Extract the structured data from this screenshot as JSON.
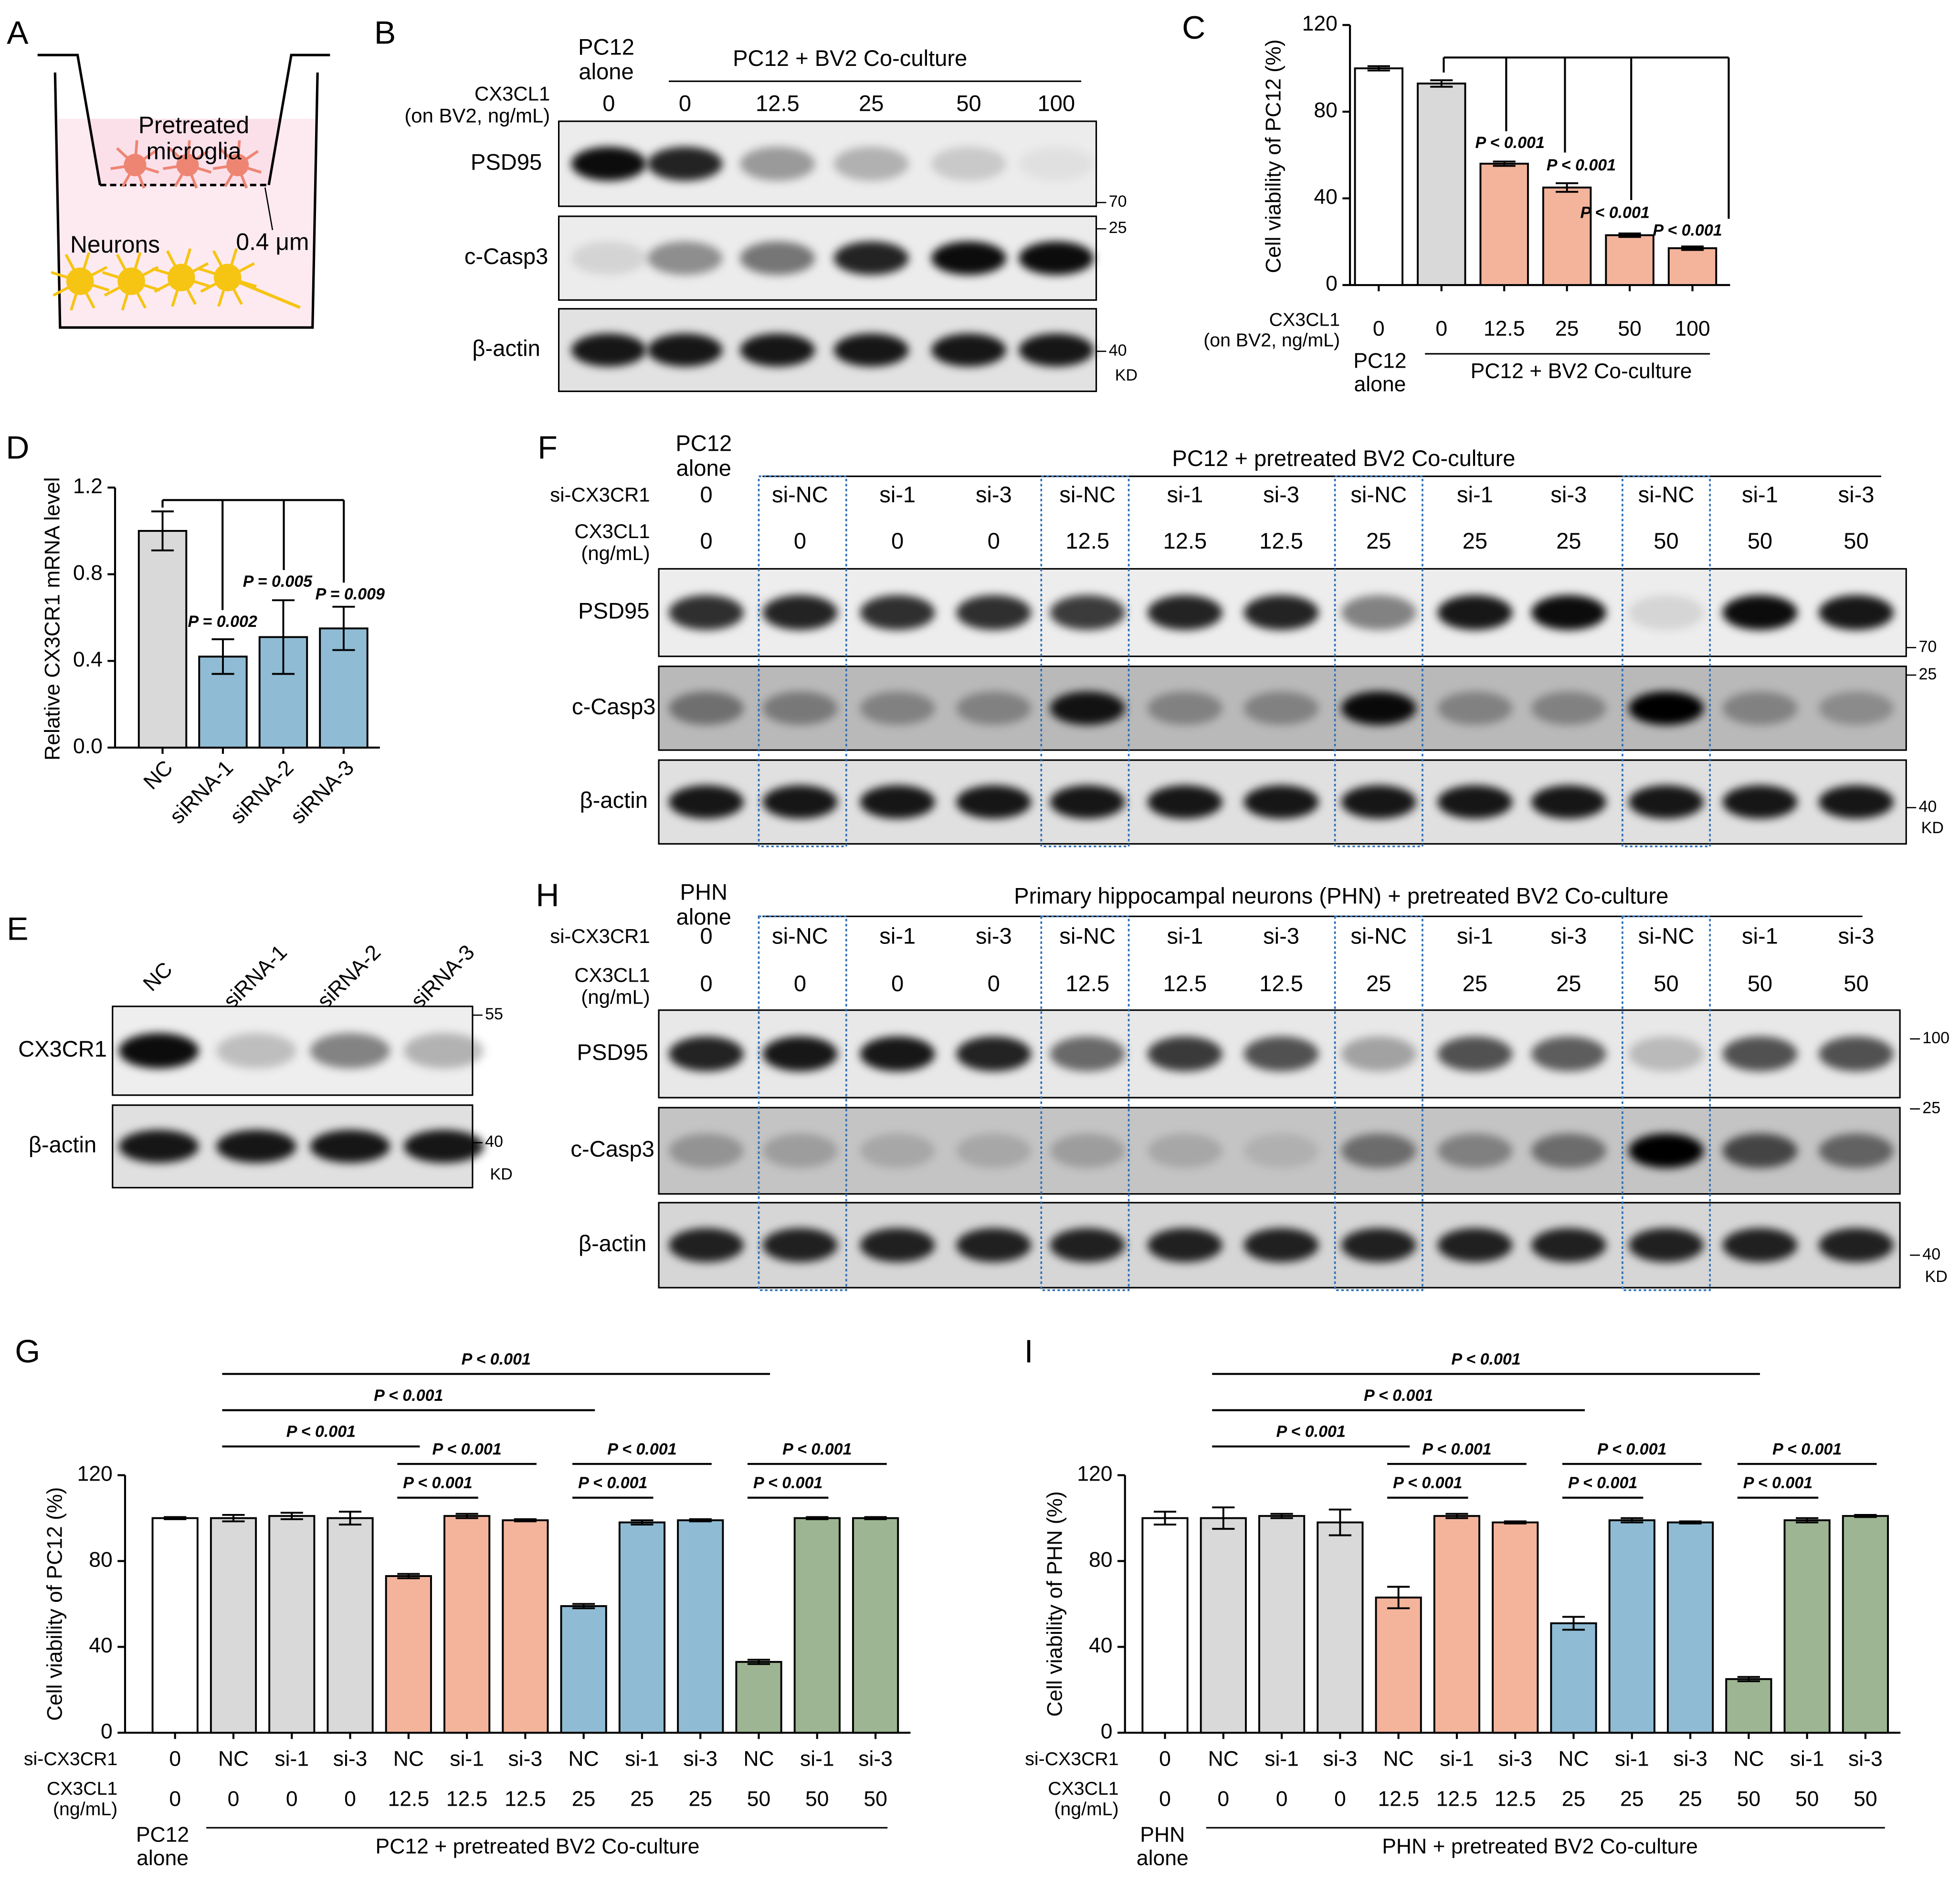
{
  "panels": [
    "A",
    "B",
    "C",
    "D",
    "E",
    "F",
    "G",
    "H",
    "I"
  ],
  "diagram_a": {
    "upper_label": "Pretreated\nmicroglia",
    "lower_label": "Neurons",
    "pore_label": "0.4 μm"
  },
  "blots": [
    {
      "alone": "PC12\nalone",
      "group": "PC12 + BV2 Co-culture",
      "rows": [
        {
          "label": "CX3CL1\n(on BV2, ng/mL)",
          "lanes": [
            "0",
            "0",
            "12.5",
            "25",
            "50",
            "100"
          ]
        }
      ],
      "proteins": [
        "PSD95",
        "c-Casp3",
        "β-actin"
      ],
      "markers": [
        "70",
        "25",
        "40",
        "KD"
      ]
    },
    {
      "rows": [
        {
          "lanes": [
            "NC",
            "siRNA-1",
            "siRNA-2",
            "siRNA-3"
          ]
        }
      ],
      "proteins": [
        "CX3CR1",
        "β-actin"
      ],
      "markers": [
        "55",
        "40",
        "KD"
      ]
    },
    {
      "alone": "PC12\nalone",
      "group": "PC12 + pretreated BV2 Co-culture",
      "rows": [
        {
          "label": "si-CX3CR1",
          "lanes": [
            "0",
            "si-NC",
            "si-1",
            "si-3",
            "si-NC",
            "si-1",
            "si-3",
            "si-NC",
            "si-1",
            "si-3",
            "si-NC",
            "si-1",
            "si-3"
          ]
        },
        {
          "label": "CX3CL1\n(ng/mL)",
          "lanes": [
            "0",
            "0",
            "0",
            "0",
            "12.5",
            "12.5",
            "12.5",
            "25",
            "25",
            "25",
            "50",
            "50",
            "50"
          ]
        }
      ],
      "proteins": [
        "PSD95",
        "c-Casp3",
        "β-actin"
      ],
      "markers": [
        "70",
        "25",
        "40",
        "KD"
      ]
    },
    {
      "alone": "PHN\nalone",
      "group": "Primary hippocampal neurons (PHN) + pretreated BV2 Co-culture",
      "rows": [
        {
          "label": "si-CX3CR1",
          "lanes": [
            "0",
            "si-NC",
            "si-1",
            "si-3",
            "si-NC",
            "si-1",
            "si-3",
            "si-NC",
            "si-1",
            "si-3",
            "si-NC",
            "si-1",
            "si-3"
          ]
        },
        {
          "label": "CX3CL1\n(ng/mL)",
          "lanes": [
            "0",
            "0",
            "0",
            "0",
            "12.5",
            "12.5",
            "12.5",
            "25",
            "25",
            "25",
            "50",
            "50",
            "50"
          ]
        }
      ],
      "proteins": [
        "PSD95",
        "c-Casp3",
        "β-actin"
      ],
      "markers": [
        "100",
        "25",
        "40",
        "KD"
      ]
    }
  ],
  "chart_data": [
    {
      "type": "bar",
      "ylabel": "Cell viability of PC12 (%)",
      "category_rows": [
        {
          "name": "CX3CL1\n(on BV2, ng/mL)",
          "labels": [
            "0",
            "0",
            "12.5",
            "25",
            "50",
            "100"
          ]
        }
      ],
      "values": [
        100,
        93,
        56,
        45,
        23,
        17
      ],
      "errors": [
        1,
        1.5,
        1,
        2,
        0.8,
        0.8
      ],
      "colors": [
        "#ffffff",
        "#d9d9d9",
        "#f4b49b",
        "#f4b49b",
        "#f4b49b",
        "#f4b49b"
      ],
      "groups": [
        "PC12\nalone",
        "PC12 + BV2 Co-culture"
      ],
      "annotations": [
        "P < 0.001",
        "P < 0.001",
        "P < 0.001",
        "P < 0.001"
      ],
      "ylim": [
        0,
        120
      ],
      "yticks": [
        0,
        40,
        80,
        120
      ]
    },
    {
      "type": "bar",
      "ylabel": "Relative CX3CR1 mRNA level",
      "categories": [
        "NC",
        "siRNA-1",
        "siRNA-2",
        "siRNA-3"
      ],
      "values": [
        1.0,
        0.42,
        0.51,
        0.55
      ],
      "errors": [
        0.09,
        0.08,
        0.17,
        0.1
      ],
      "colors": [
        "#d9d9d9",
        "#8fbcd4",
        "#8fbcd4",
        "#8fbcd4"
      ],
      "annotations": [
        "P = 0.002",
        "P = 0.005",
        "P = 0.009"
      ],
      "ylim": [
        0,
        1.2
      ],
      "yticks": [
        {
          "value": 0,
          "label": "0.0"
        },
        0.4,
        0.8,
        1.2
      ]
    },
    {
      "type": "bar",
      "ylabel": "Cell viability of PC12 (%)",
      "category_rows": [
        {
          "name": "si-CX3CR1",
          "labels": [
            "0",
            "NC",
            "si-1",
            "si-3",
            "NC",
            "si-1",
            "si-3",
            "NC",
            "si-1",
            "si-3",
            "NC",
            "si-1",
            "si-3"
          ]
        },
        {
          "name": "CX3CL1\n(ng/mL)",
          "labels": [
            "0",
            "0",
            "0",
            "0",
            "12.5",
            "12.5",
            "12.5",
            "25",
            "25",
            "25",
            "50",
            "50",
            "50"
          ]
        }
      ],
      "values": [
        100,
        100,
        101,
        100,
        73,
        101,
        99,
        59,
        98,
        99,
        33,
        100,
        100
      ],
      "errors": [
        0.5,
        1.5,
        1.5,
        3,
        1,
        1,
        0.5,
        1,
        1,
        0.5,
        1,
        0.5,
        0.5
      ],
      "colors": [
        "#ffffff",
        "#d9d9d9",
        "#d9d9d9",
        "#d9d9d9",
        "#f4b49b",
        "#f4b49b",
        "#f4b49b",
        "#8fbcd4",
        "#8fbcd4",
        "#8fbcd4",
        "#9db592",
        "#9db592",
        "#9db592"
      ],
      "groups": [
        "PC12\nalone",
        "PC12 + pretreated BV2 Co-culture"
      ],
      "annotations": [
        "P < 0.001",
        "P < 0.001",
        "P < 0.001",
        "P < 0.001",
        "P < 0.001",
        "P < 0.001",
        "P < 0.001",
        "P < 0.001",
        "P < 0.001"
      ],
      "ylim": [
        0,
        120
      ],
      "yticks": [
        0,
        40,
        80,
        120
      ]
    },
    {
      "type": "bar",
      "ylabel": "Cell viability of PHN (%)",
      "category_rows": [
        {
          "name": "si-CX3CR1",
          "labels": [
            "0",
            "NC",
            "si-1",
            "si-3",
            "NC",
            "si-1",
            "si-3",
            "NC",
            "si-1",
            "si-3",
            "NC",
            "si-1",
            "si-3"
          ]
        },
        {
          "name": "CX3CL1\n(ng/mL)",
          "labels": [
            "0",
            "0",
            "0",
            "0",
            "12.5",
            "12.5",
            "12.5",
            "25",
            "25",
            "25",
            "50",
            "50",
            "50"
          ]
        }
      ],
      "values": [
        100,
        100,
        101,
        98,
        63,
        101,
        98,
        51,
        99,
        98,
        25,
        99,
        101
      ],
      "errors": [
        3,
        5,
        1,
        6,
        5,
        1,
        0.5,
        3,
        1,
        0.5,
        1,
        1,
        0.5
      ],
      "colors": [
        "#ffffff",
        "#d9d9d9",
        "#d9d9d9",
        "#d9d9d9",
        "#f4b49b",
        "#f4b49b",
        "#f4b49b",
        "#8fbcd4",
        "#8fbcd4",
        "#8fbcd4",
        "#9db592",
        "#9db592",
        "#9db592"
      ],
      "groups": [
        "PHN\nalone",
        "PHN + pretreated BV2 Co-culture"
      ],
      "annotations": [
        "P < 0.001",
        "P < 0.001",
        "P < 0.001",
        "P < 0.001",
        "P < 0.001",
        "P < 0.001",
        "P < 0.001",
        "P < 0.001",
        "P < 0.001"
      ],
      "ylim": [
        0,
        120
      ],
      "yticks": [
        0,
        40,
        80,
        120
      ]
    }
  ]
}
